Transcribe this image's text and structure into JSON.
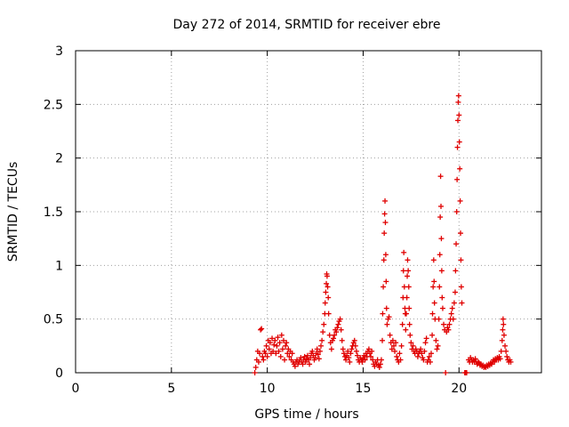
{
  "chart_data": {
    "type": "scatter",
    "title": "Day 272 of 2014, SRMTID for receiver ebre",
    "xlabel": "GPS time / hours",
    "ylabel": "SRMTID / TECUs",
    "xlim": [
      0,
      24.3
    ],
    "ylim": [
      0,
      3
    ],
    "xticks": [
      0,
      5,
      10,
      15,
      20
    ],
    "yticks": [
      0,
      0.5,
      1,
      1.5,
      2,
      2.5,
      3
    ],
    "ytick_labels": [
      "0",
      "0.5",
      "1",
      "1.5",
      "2",
      "2.5",
      "3"
    ],
    "grid": true,
    "marker": "+",
    "marker_color": "#e00000",
    "series": [
      {
        "name": "SRMTID",
        "points": [
          [
            9.35,
            0.0
          ],
          [
            9.4,
            0.05
          ],
          [
            9.45,
            0.12
          ],
          [
            9.5,
            0.2
          ],
          [
            9.55,
            0.1
          ],
          [
            9.6,
            0.18
          ],
          [
            9.65,
            0.4
          ],
          [
            9.7,
            0.41
          ],
          [
            9.75,
            0.15
          ],
          [
            9.8,
            0.12
          ],
          [
            9.85,
            0.2
          ],
          [
            9.9,
            0.18
          ],
          [
            9.95,
            0.25
          ],
          [
            10.0,
            0.15
          ],
          [
            10.05,
            0.3
          ],
          [
            10.1,
            0.22
          ],
          [
            10.15,
            0.28
          ],
          [
            10.2,
            0.18
          ],
          [
            10.25,
            0.32
          ],
          [
            10.3,
            0.2
          ],
          [
            10.35,
            0.26
          ],
          [
            10.4,
            0.3
          ],
          [
            10.45,
            0.18
          ],
          [
            10.5,
            0.25
          ],
          [
            10.55,
            0.33
          ],
          [
            10.6,
            0.2
          ],
          [
            10.65,
            0.28
          ],
          [
            10.7,
            0.15
          ],
          [
            10.75,
            0.35
          ],
          [
            10.8,
            0.22
          ],
          [
            10.85,
            0.3
          ],
          [
            10.9,
            0.12
          ],
          [
            10.95,
            0.25
          ],
          [
            11.0,
            0.28
          ],
          [
            11.05,
            0.18
          ],
          [
            11.1,
            0.22
          ],
          [
            11.15,
            0.15
          ],
          [
            11.2,
            0.2
          ],
          [
            11.25,
            0.12
          ],
          [
            11.3,
            0.18
          ],
          [
            11.35,
            0.1
          ],
          [
            11.4,
            0.08
          ],
          [
            11.45,
            0.06
          ],
          [
            11.5,
            0.1
          ],
          [
            11.55,
            0.12
          ],
          [
            11.6,
            0.08
          ],
          [
            11.65,
            0.1
          ],
          [
            11.7,
            0.12
          ],
          [
            11.75,
            0.14
          ],
          [
            11.8,
            0.1
          ],
          [
            11.85,
            0.08
          ],
          [
            11.9,
            0.12
          ],
          [
            11.95,
            0.15
          ],
          [
            12.0,
            0.1
          ],
          [
            12.05,
            0.13
          ],
          [
            12.1,
            0.16
          ],
          [
            12.15,
            0.12
          ],
          [
            12.2,
            0.08
          ],
          [
            12.25,
            0.14
          ],
          [
            12.3,
            0.18
          ],
          [
            12.35,
            0.2
          ],
          [
            12.4,
            0.16
          ],
          [
            12.45,
            0.12
          ],
          [
            12.5,
            0.14
          ],
          [
            12.55,
            0.18
          ],
          [
            12.6,
            0.22
          ],
          [
            12.65,
            0.17
          ],
          [
            12.7,
            0.13
          ],
          [
            12.75,
            0.2
          ],
          [
            12.8,
            0.25
          ],
          [
            12.85,
            0.3
          ],
          [
            12.9,
            0.38
          ],
          [
            12.95,
            0.45
          ],
          [
            13.0,
            0.55
          ],
          [
            13.02,
            0.65
          ],
          [
            13.05,
            0.75
          ],
          [
            13.08,
            0.83
          ],
          [
            13.1,
            0.92
          ],
          [
            13.12,
            0.9
          ],
          [
            13.15,
            0.8
          ],
          [
            13.18,
            0.7
          ],
          [
            13.2,
            0.55
          ],
          [
            13.25,
            0.35
          ],
          [
            13.3,
            0.28
          ],
          [
            13.35,
            0.22
          ],
          [
            13.4,
            0.3
          ],
          [
            13.45,
            0.32
          ],
          [
            13.5,
            0.35
          ],
          [
            13.55,
            0.4
          ],
          [
            13.6,
            0.38
          ],
          [
            13.65,
            0.42
          ],
          [
            13.7,
            0.45
          ],
          [
            13.75,
            0.48
          ],
          [
            13.8,
            0.5
          ],
          [
            13.85,
            0.4
          ],
          [
            13.9,
            0.3
          ],
          [
            13.95,
            0.22
          ],
          [
            14.0,
            0.18
          ],
          [
            14.05,
            0.15
          ],
          [
            14.1,
            0.12
          ],
          [
            14.15,
            0.16
          ],
          [
            14.2,
            0.2
          ],
          [
            14.25,
            0.14
          ],
          [
            14.3,
            0.1
          ],
          [
            14.35,
            0.18
          ],
          [
            14.4,
            0.22
          ],
          [
            14.45,
            0.25
          ],
          [
            14.5,
            0.28
          ],
          [
            14.55,
            0.3
          ],
          [
            14.6,
            0.25
          ],
          [
            14.65,
            0.2
          ],
          [
            14.7,
            0.16
          ],
          [
            14.75,
            0.12
          ],
          [
            14.8,
            0.1
          ],
          [
            14.85,
            0.14
          ],
          [
            14.9,
            0.12
          ],
          [
            14.95,
            0.1
          ],
          [
            15.0,
            0.13
          ],
          [
            15.05,
            0.16
          ],
          [
            15.1,
            0.12
          ],
          [
            15.15,
            0.18
          ],
          [
            15.2,
            0.15
          ],
          [
            15.25,
            0.2
          ],
          [
            15.3,
            0.22
          ],
          [
            15.35,
            0.18
          ],
          [
            15.4,
            0.15
          ],
          [
            15.45,
            0.2
          ],
          [
            15.5,
            0.12
          ],
          [
            15.55,
            0.08
          ],
          [
            15.6,
            0.06
          ],
          [
            15.65,
            0.1
          ],
          [
            15.7,
            0.08
          ],
          [
            15.75,
            0.12
          ],
          [
            15.8,
            0.07
          ],
          [
            15.85,
            0.05
          ],
          [
            15.9,
            0.08
          ],
          [
            15.95,
            0.12
          ],
          [
            16.0,
            0.3
          ],
          [
            16.02,
            0.55
          ],
          [
            16.05,
            0.8
          ],
          [
            16.08,
            1.05
          ],
          [
            16.1,
            1.3
          ],
          [
            16.12,
            1.48
          ],
          [
            16.14,
            1.6
          ],
          [
            16.16,
            1.4
          ],
          [
            16.18,
            1.1
          ],
          [
            16.2,
            0.85
          ],
          [
            16.22,
            0.6
          ],
          [
            16.25,
            0.45
          ],
          [
            16.3,
            0.5
          ],
          [
            16.35,
            0.52
          ],
          [
            16.4,
            0.35
          ],
          [
            16.45,
            0.28
          ],
          [
            16.5,
            0.22
          ],
          [
            16.55,
            0.3
          ],
          [
            16.6,
            0.25
          ],
          [
            16.65,
            0.2
          ],
          [
            16.7,
            0.28
          ],
          [
            16.75,
            0.15
          ],
          [
            16.8,
            0.12
          ],
          [
            16.85,
            0.1
          ],
          [
            16.9,
            0.18
          ],
          [
            16.95,
            0.12
          ],
          [
            17.0,
            0.25
          ],
          [
            17.05,
            0.45
          ],
          [
            17.08,
            0.7
          ],
          [
            17.1,
            0.95
          ],
          [
            17.12,
            1.12
          ],
          [
            17.15,
            0.8
          ],
          [
            17.18,
            0.6
          ],
          [
            17.2,
            0.55
          ],
          [
            17.22,
            0.4
          ],
          [
            17.25,
            0.55
          ],
          [
            17.28,
            0.7
          ],
          [
            17.3,
            0.9
          ],
          [
            17.32,
            1.05
          ],
          [
            17.35,
            0.95
          ],
          [
            17.38,
            0.8
          ],
          [
            17.4,
            0.6
          ],
          [
            17.42,
            0.45
          ],
          [
            17.45,
            0.35
          ],
          [
            17.5,
            0.28
          ],
          [
            17.55,
            0.22
          ],
          [
            17.6,
            0.25
          ],
          [
            17.65,
            0.2
          ],
          [
            17.7,
            0.18
          ],
          [
            17.75,
            0.22
          ],
          [
            17.8,
            0.2
          ],
          [
            17.85,
            0.15
          ],
          [
            17.9,
            0.18
          ],
          [
            17.95,
            0.2
          ],
          [
            18.0,
            0.22
          ],
          [
            18.05,
            0.18
          ],
          [
            18.1,
            0.14
          ],
          [
            18.15,
            0.12
          ],
          [
            18.2,
            0.2
          ],
          [
            18.25,
            0.28
          ],
          [
            18.3,
            0.32
          ],
          [
            18.35,
            0.1
          ],
          [
            18.4,
            0.12
          ],
          [
            18.45,
            0.15
          ],
          [
            18.5,
            0.1
          ],
          [
            18.55,
            0.18
          ],
          [
            18.6,
            0.35
          ],
          [
            18.62,
            0.55
          ],
          [
            18.65,
            0.8
          ],
          [
            18.68,
            1.05
          ],
          [
            18.7,
            0.85
          ],
          [
            18.72,
            0.65
          ],
          [
            18.75,
            0.5
          ],
          [
            18.8,
            0.3
          ],
          [
            18.85,
            0.22
          ],
          [
            18.9,
            0.25
          ],
          [
            18.95,
            0.5
          ],
          [
            18.98,
            0.8
          ],
          [
            19.0,
            1.1
          ],
          [
            19.02,
            1.45
          ],
          [
            19.04,
            1.83
          ],
          [
            19.06,
            1.55
          ],
          [
            19.08,
            1.25
          ],
          [
            19.1,
            0.95
          ],
          [
            19.12,
            0.7
          ],
          [
            19.15,
            0.6
          ],
          [
            19.2,
            0.45
          ],
          [
            19.25,
            0.4
          ],
          [
            19.3,
            0.0
          ],
          [
            19.35,
            0.38
          ],
          [
            19.4,
            0.42
          ],
          [
            19.45,
            0.4
          ],
          [
            19.5,
            0.45
          ],
          [
            19.55,
            0.5
          ],
          [
            19.6,
            0.55
          ],
          [
            19.65,
            0.6
          ],
          [
            19.7,
            0.5
          ],
          [
            19.75,
            0.65
          ],
          [
            19.8,
            0.75
          ],
          [
            19.82,
            0.95
          ],
          [
            19.85,
            1.2
          ],
          [
            19.88,
            1.5
          ],
          [
            19.9,
            1.8
          ],
          [
            19.92,
            2.1
          ],
          [
            19.94,
            2.35
          ],
          [
            19.96,
            2.52
          ],
          [
            19.98,
            2.58
          ],
          [
            20.0,
            2.4
          ],
          [
            20.02,
            2.15
          ],
          [
            20.04,
            1.9
          ],
          [
            20.06,
            1.6
          ],
          [
            20.08,
            1.3
          ],
          [
            20.1,
            1.05
          ],
          [
            20.12,
            0.8
          ],
          [
            20.15,
            0.65
          ],
          [
            20.3,
            0.0
          ],
          [
            20.35,
            0.0
          ],
          [
            20.4,
            0.0
          ],
          [
            20.5,
            0.12
          ],
          [
            20.55,
            0.1
          ],
          [
            20.6,
            0.14
          ],
          [
            20.65,
            0.12
          ],
          [
            20.7,
            0.1
          ],
          [
            20.75,
            0.12
          ],
          [
            20.8,
            0.1
          ],
          [
            20.85,
            0.13
          ],
          [
            20.9,
            0.1
          ],
          [
            20.95,
            0.08
          ],
          [
            21.0,
            0.1
          ],
          [
            21.05,
            0.09
          ],
          [
            21.1,
            0.07
          ],
          [
            21.15,
            0.08
          ],
          [
            21.2,
            0.06
          ],
          [
            21.25,
            0.07
          ],
          [
            21.3,
            0.05
          ],
          [
            21.35,
            0.06
          ],
          [
            21.4,
            0.05
          ],
          [
            21.45,
            0.07
          ],
          [
            21.5,
            0.06
          ],
          [
            21.55,
            0.08
          ],
          [
            21.6,
            0.07
          ],
          [
            21.65,
            0.09
          ],
          [
            21.7,
            0.08
          ],
          [
            21.75,
            0.1
          ],
          [
            21.8,
            0.12
          ],
          [
            21.85,
            0.1
          ],
          [
            21.9,
            0.13
          ],
          [
            21.95,
            0.12
          ],
          [
            22.0,
            0.14
          ],
          [
            22.05,
            0.12
          ],
          [
            22.1,
            0.15
          ],
          [
            22.15,
            0.13
          ],
          [
            22.2,
            0.2
          ],
          [
            22.25,
            0.3
          ],
          [
            22.28,
            0.4
          ],
          [
            22.3,
            0.5
          ],
          [
            22.32,
            0.45
          ],
          [
            22.35,
            0.35
          ],
          [
            22.4,
            0.25
          ],
          [
            22.45,
            0.2
          ],
          [
            22.5,
            0.15
          ],
          [
            22.55,
            0.12
          ],
          [
            22.6,
            0.1
          ],
          [
            22.65,
            0.12
          ],
          [
            22.7,
            0.1
          ]
        ]
      }
    ]
  }
}
